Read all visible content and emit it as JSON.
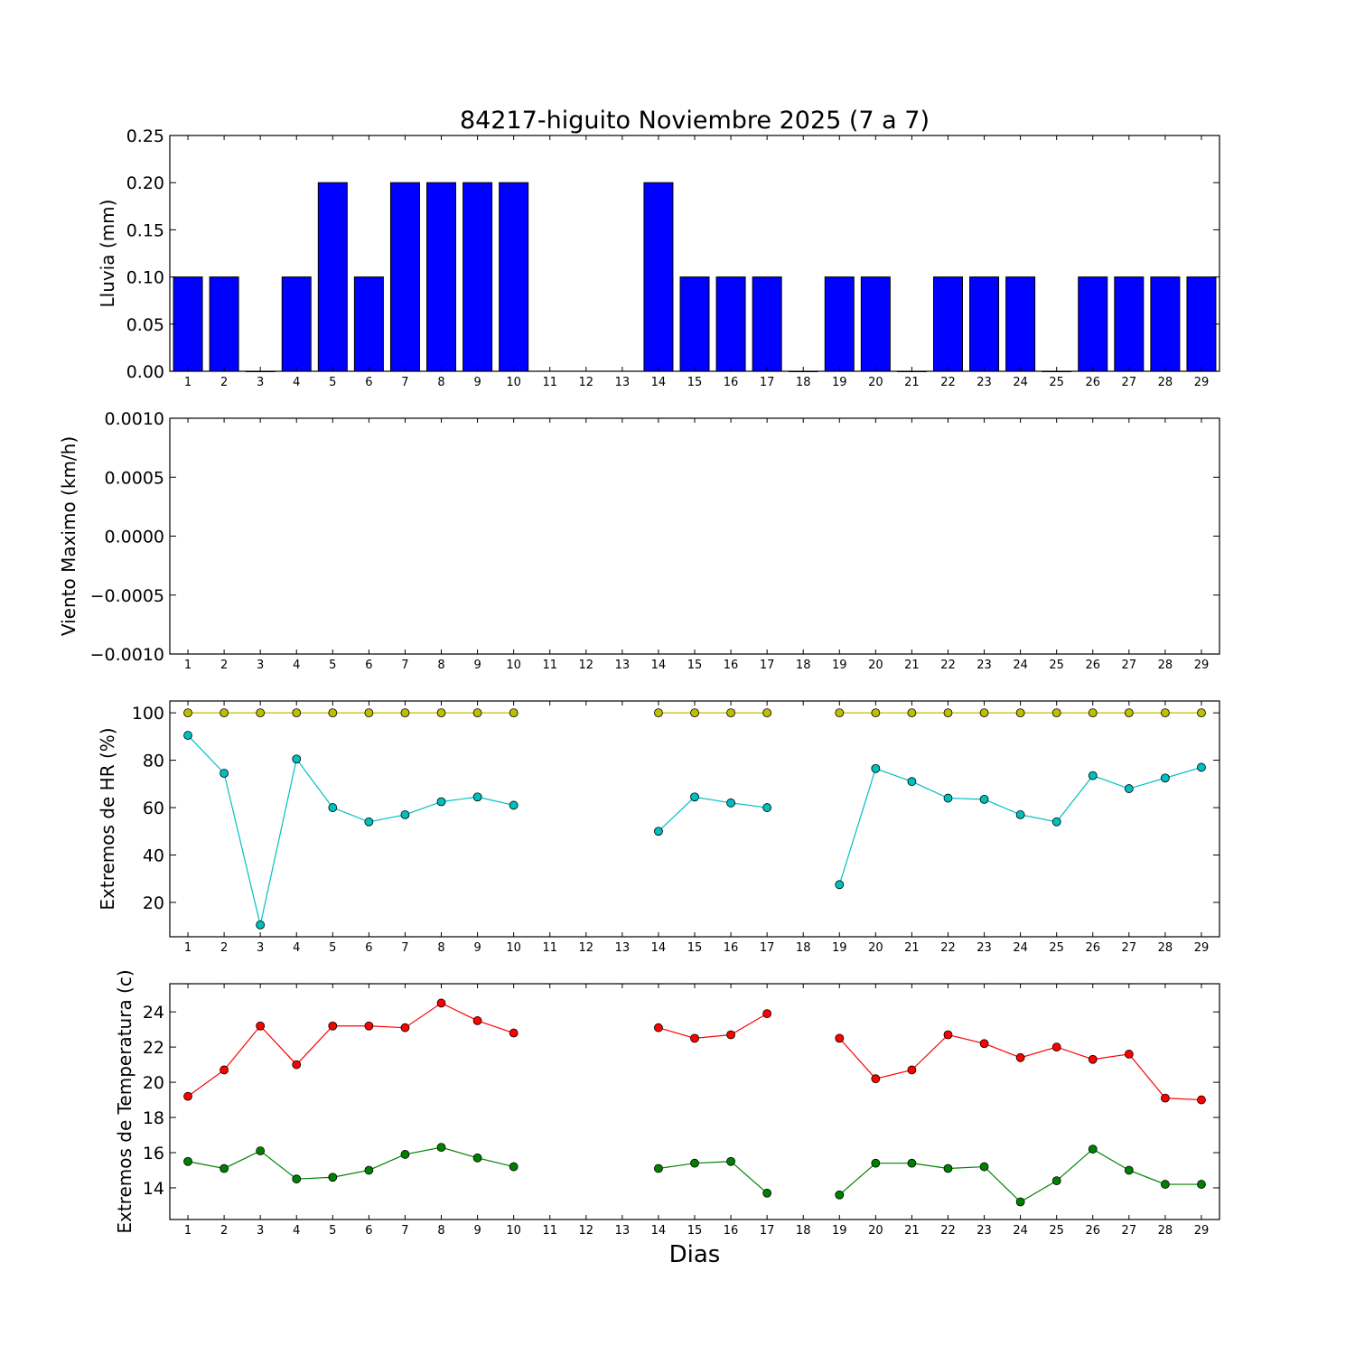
{
  "figure": {
    "title": "84217-higuito Noviembre 2025  (7 a 7)",
    "xlabel": "Dias"
  },
  "chart_data": [
    {
      "type": "bar",
      "ylabel": "Lluvia (mm)",
      "x": [
        1,
        2,
        3,
        4,
        5,
        6,
        7,
        8,
        9,
        10,
        11,
        12,
        13,
        14,
        15,
        16,
        17,
        18,
        19,
        20,
        21,
        22,
        23,
        24,
        25,
        26,
        27,
        28,
        29
      ],
      "values": [
        0.1,
        0.1,
        0,
        0.1,
        0.2,
        0.1,
        0.2,
        0.2,
        0.2,
        0.2,
        null,
        null,
        null,
        0.2,
        0.1,
        0.1,
        0.1,
        0,
        0.1,
        0.1,
        0,
        0.1,
        0.1,
        0.1,
        0,
        0.1,
        0.1,
        0.1,
        0.1
      ],
      "color": "#0000ff",
      "ylim": [
        0,
        0.25
      ],
      "yticks": [
        "0.00",
        "0.05",
        "0.10",
        "0.15",
        "0.20",
        "0.25"
      ]
    },
    {
      "type": "line",
      "ylabel": "Viento Maximo (km/h)",
      "x": [
        1,
        2,
        3,
        4,
        5,
        6,
        7,
        8,
        9,
        10,
        11,
        12,
        13,
        14,
        15,
        16,
        17,
        18,
        19,
        20,
        21,
        22,
        23,
        24,
        25,
        26,
        27,
        28,
        29
      ],
      "series": [],
      "ylim": [
        -0.001,
        0.001
      ],
      "yticks": [
        "−0.0010",
        "−0.0005",
        "0.0000",
        "0.0005",
        "0.0010"
      ]
    },
    {
      "type": "line",
      "ylabel": "Extremos de HR (%)",
      "x": [
        1,
        2,
        3,
        4,
        5,
        6,
        7,
        8,
        9,
        10,
        11,
        12,
        13,
        14,
        15,
        16,
        17,
        18,
        19,
        20,
        21,
        22,
        23,
        24,
        25,
        26,
        27,
        28,
        29
      ],
      "series": [
        {
          "color": "#bfbf00",
          "values": [
            100,
            100,
            100,
            100,
            100,
            100,
            100,
            100,
            100,
            100,
            null,
            null,
            null,
            100,
            100,
            100,
            100,
            null,
            100,
            100,
            100,
            100,
            100,
            100,
            100,
            100,
            100,
            100,
            100
          ]
        },
        {
          "color": "#00bfbf",
          "values": [
            90.5,
            74.5,
            10.5,
            80.5,
            60,
            54,
            57,
            62.5,
            64.5,
            61,
            null,
            null,
            null,
            50,
            64.5,
            62,
            60,
            null,
            27.5,
            76.5,
            71,
            64,
            63.5,
            57,
            54,
            73.5,
            68,
            72.5,
            77
          ]
        }
      ],
      "ylim": [
        5.5,
        105
      ],
      "yticks": [
        "20",
        "40",
        "60",
        "80",
        "100"
      ]
    },
    {
      "type": "line",
      "ylabel": "Extremos de Temperatura (c)",
      "x": [
        1,
        2,
        3,
        4,
        5,
        6,
        7,
        8,
        9,
        10,
        11,
        12,
        13,
        14,
        15,
        16,
        17,
        18,
        19,
        20,
        21,
        22,
        23,
        24,
        25,
        26,
        27,
        28,
        29
      ],
      "series": [
        {
          "color": "#ff0000",
          "values": [
            19.2,
            20.7,
            23.2,
            21,
            23.2,
            23.2,
            23.1,
            24.5,
            23.5,
            22.8,
            null,
            null,
            null,
            23.1,
            22.5,
            22.7,
            23.9,
            null,
            22.5,
            20.2,
            20.7,
            22.7,
            22.2,
            21.4,
            22,
            21.3,
            21.6,
            19.1,
            19
          ]
        },
        {
          "color": "#008000",
          "values": [
            15.5,
            15.1,
            16.1,
            14.5,
            14.6,
            15,
            15.9,
            16.3,
            15.7,
            15.2,
            null,
            null,
            null,
            15.1,
            15.4,
            15.5,
            13.7,
            null,
            13.6,
            15.4,
            15.4,
            15.1,
            15.2,
            13.2,
            14.4,
            16.2,
            15,
            14.2,
            14.2
          ]
        }
      ],
      "ylim": [
        12.2,
        25.6
      ],
      "yticks": [
        "14",
        "16",
        "18",
        "20",
        "22",
        "24"
      ]
    }
  ]
}
